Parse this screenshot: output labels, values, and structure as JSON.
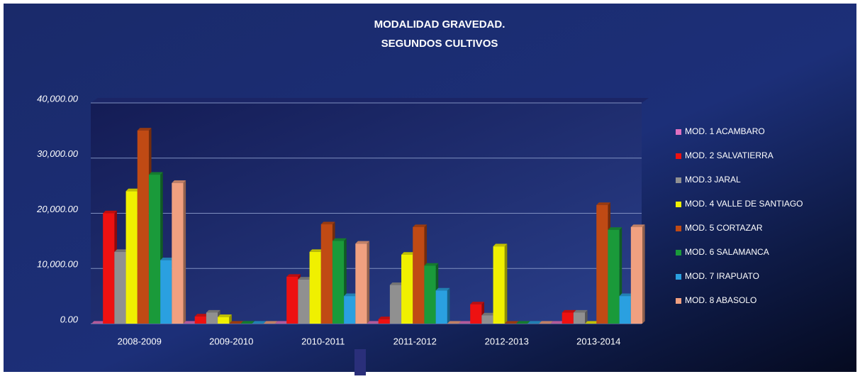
{
  "chart_data": {
    "type": "bar",
    "title": [
      "MODALIDAD GRAVEDAD.",
      "SEGUNDOS CULTIVOS"
    ],
    "categories": [
      "2008-2009",
      "2009-2010",
      "2010-2011",
      "2011-2012",
      "2012-2013",
      "2013-2014"
    ],
    "series": [
      {
        "name": "MOD. 1 ACAMBARO",
        "color": "#e070c0",
        "values": [
          0,
          0,
          0,
          0,
          0,
          0
        ]
      },
      {
        "name": "MOD. 2 SALVATIERRA",
        "color": "#ee1111",
        "values": [
          20000,
          1300,
          8500,
          800,
          3500,
          2000
        ]
      },
      {
        "name": "MOD.3  JARAL",
        "color": "#909090",
        "values": [
          13000,
          2000,
          8000,
          7000,
          1500,
          2000
        ]
      },
      {
        "name": "MOD. 4  VALLE DE SANTIAGO",
        "color": "#f0f000",
        "values": [
          24000,
          1200,
          13000,
          12500,
          14000,
          0
        ]
      },
      {
        "name": "MOD. 5 CORTAZAR",
        "color": "#c04a14",
        "values": [
          35000,
          0,
          18000,
          17500,
          0,
          21500
        ]
      },
      {
        "name": "MOD. 6 SALAMANCA",
        "color": "#1a9a3a",
        "values": [
          27000,
          0,
          15000,
          10500,
          0,
          17000
        ]
      },
      {
        "name": "MOD. 7 IRAPUATO",
        "color": "#2aa0e0",
        "values": [
          11500,
          0,
          5000,
          6000,
          0,
          5000
        ]
      },
      {
        "name": "MOD. 8 ABASOLO",
        "color": "#f0a080",
        "values": [
          25500,
          0,
          14500,
          0,
          0,
          17500
        ]
      }
    ],
    "ylim": [
      0,
      40000
    ],
    "yticks": [
      {
        "value": 0,
        "label": "0.00"
      },
      {
        "value": 10000,
        "label": "10,000.00"
      },
      {
        "value": 20000,
        "label": "20,000.00"
      },
      {
        "value": 30000,
        "label": "30,000.00"
      },
      {
        "value": 40000,
        "label": "40,000.00"
      }
    ],
    "grid": true
  }
}
